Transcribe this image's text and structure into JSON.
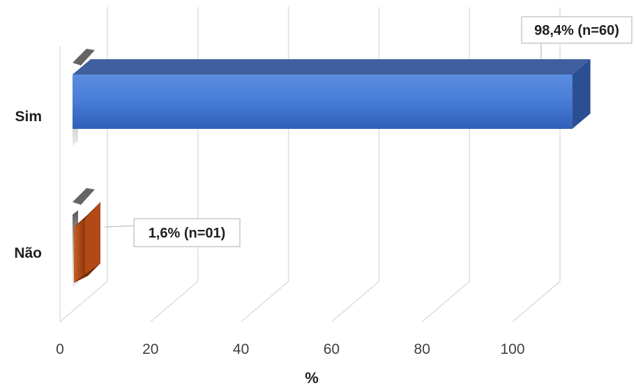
{
  "chart_data": {
    "type": "bar",
    "orientation": "horizontal",
    "style": "3d",
    "categories": [
      "Sim",
      "Não"
    ],
    "values": [
      98.4,
      1.6
    ],
    "counts": [
      60,
      1
    ],
    "data_labels": [
      "98,4% (n=60)",
      "1,6% (n=01)"
    ],
    "bar_colors": [
      "#3d6fce",
      "#b14a16"
    ],
    "xlabel": "%",
    "ylabel": "",
    "xlim": [
      0,
      100
    ],
    "xticks": [
      "0",
      "20",
      "40",
      "60",
      "80",
      "100"
    ],
    "grid": true,
    "legend": "none"
  }
}
